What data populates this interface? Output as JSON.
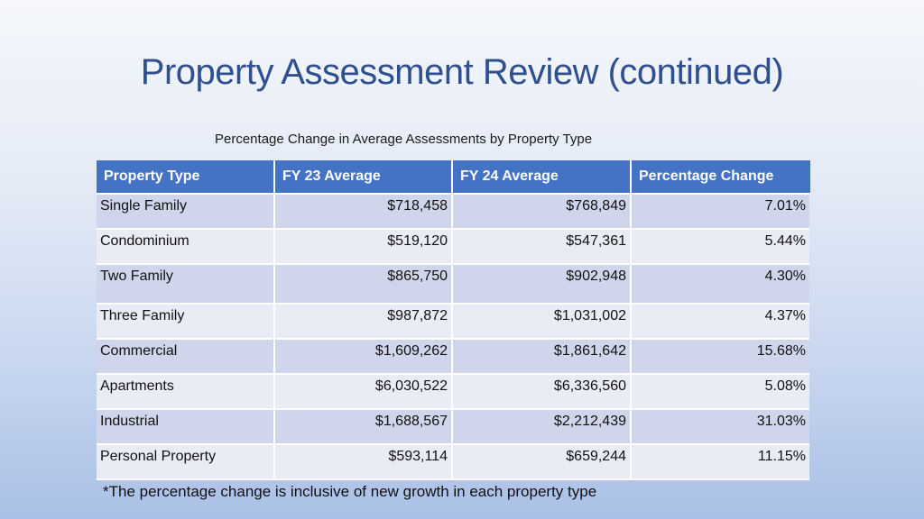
{
  "slide": {
    "title": "Property Assessment Review (continued)",
    "caption": "Percentage Change in Average Assessments by Property Type",
    "footnote": "*The percentage change is inclusive of new growth in each property type"
  },
  "table": {
    "headers": [
      "Property Type",
      "FY 23 Average",
      "FY 24 Average",
      "Percentage Change"
    ],
    "rows": [
      [
        "Single Family",
        "$718,458",
        "$768,849",
        "7.01%"
      ],
      [
        "Condominium",
        "$519,120",
        "$547,361",
        "5.44%"
      ],
      [
        "Two Family",
        "$865,750",
        "$902,948",
        "4.30%"
      ],
      [
        "Three Family",
        "$987,872",
        "$1,031,002",
        "4.37%"
      ],
      [
        "Commercial",
        "$1,609,262",
        "$1,861,642",
        "15.68%"
      ],
      [
        "Apartments",
        "$6,030,522",
        "$6,336,560",
        "5.08%"
      ],
      [
        "Industrial",
        "$1,688,567",
        "$2,212,439",
        "31.03%"
      ],
      [
        "Personal Property",
        "$593,114",
        "$659,244",
        "11.15%"
      ]
    ]
  },
  "colors": {
    "header_bg": "#4472c4",
    "row_odd": "#cfd5ea",
    "row_even": "#e9ebf5",
    "title": "#2f4f8f"
  }
}
